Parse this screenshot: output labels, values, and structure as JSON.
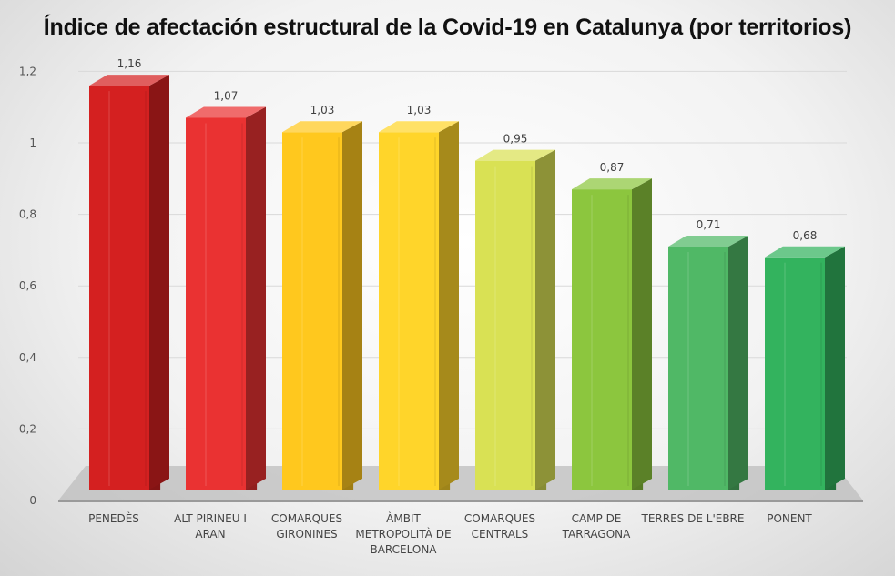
{
  "chart_data": {
    "type": "bar",
    "title": "Índice de afectación estructural de la Covid-19 en Catalunya (por territorios)",
    "categories": [
      [
        "PENEDÈS"
      ],
      [
        "ALT PIRINEU I",
        "ARAN"
      ],
      [
        "COMARQUES",
        "GIRONINES"
      ],
      [
        "ÀMBIT",
        "METROPOLITÀ DE",
        "BARCELONA"
      ],
      [
        "COMARQUES",
        "CENTRALS"
      ],
      [
        "CAMP DE",
        "TARRAGONA"
      ],
      [
        "TERRES DE L'EBRE"
      ],
      [
        "PONENT"
      ]
    ],
    "values": [
      1.16,
      1.07,
      1.03,
      1.03,
      0.95,
      0.87,
      0.71,
      0.68
    ],
    "value_labels": [
      "1,16",
      "1,07",
      "1,03",
      "1,03",
      "0,95",
      "0,87",
      "0,71",
      "0,68"
    ],
    "bar_colors": [
      "#d42020",
      "#ea3232",
      "#ffc81e",
      "#ffd52a",
      "#d9e154",
      "#8cc63e",
      "#50b866",
      "#33b35e"
    ],
    "ylim": [
      0,
      1.2
    ],
    "yticks": [
      0,
      0.2,
      0.4,
      0.6,
      0.8,
      1,
      1.2
    ],
    "ytick_labels": [
      "0",
      "0,2",
      "0,4",
      "0,6",
      "0,8",
      "1",
      "1,2"
    ],
    "grid": true,
    "legend": "none",
    "style": "3d-column"
  }
}
